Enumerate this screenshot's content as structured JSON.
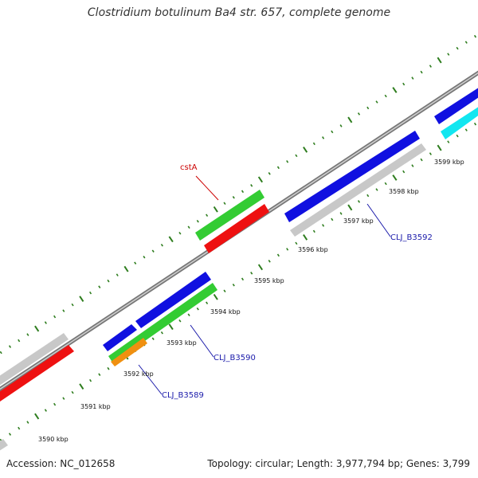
{
  "title": "Clostridium botulinum Ba4 str. 657, complete genome",
  "footer": {
    "accession": "Accession: NC_012658",
    "topology": "Topology: circular; Length: 3,977,794 bp; Genes: 3,799"
  },
  "colors": {
    "backbone": "#808080",
    "tick": "#2e7d1e",
    "blue": "#1010e0",
    "green": "#33cc33",
    "red": "#ee1111",
    "gray": "#c8c8c8",
    "cyan": "#11e6f0",
    "orange": "#f09010",
    "label_blue": "#1a1aaa",
    "label_red": "#cc0000"
  },
  "scale_labels": [
    "3590 kbp",
    "3591 kbp",
    "3592 kbp",
    "3593 kbp",
    "3594 kbp",
    "3595 kbp",
    "3596 kbp",
    "3597 kbp",
    "3598 kbp",
    "3599 kbp"
  ],
  "gene_labels": {
    "cstA": "cstA",
    "b3589": "CLJ_B3589",
    "b3590": "CLJ_B3590",
    "b3592": "CLJ_B3592"
  }
}
